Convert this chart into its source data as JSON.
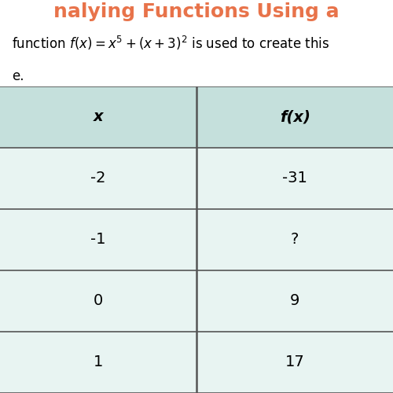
{
  "title_text": "nalying Functions Using a",
  "title_bg_color": "#FFFFFF",
  "title_text_color": "#E8734A",
  "desc_line1": "function $f(x) = x^5 + (x + 3)^2$ is used to create this",
  "desc_line2": "e.",
  "desc_text_color": "#000000",
  "header_bg_color": "#C5E0DC",
  "row_bg_color": "#E8F4F2",
  "col_headers": [
    "x",
    "f(x)"
  ],
  "rows": [
    [
      "-2",
      "-31"
    ],
    [
      "-1",
      "?"
    ],
    [
      "0",
      "9"
    ],
    [
      "1",
      "17"
    ]
  ],
  "table_line_color": "#555555",
  "font_size_header": 14,
  "font_size_row": 14,
  "font_size_desc": 12,
  "font_size_title": 18
}
